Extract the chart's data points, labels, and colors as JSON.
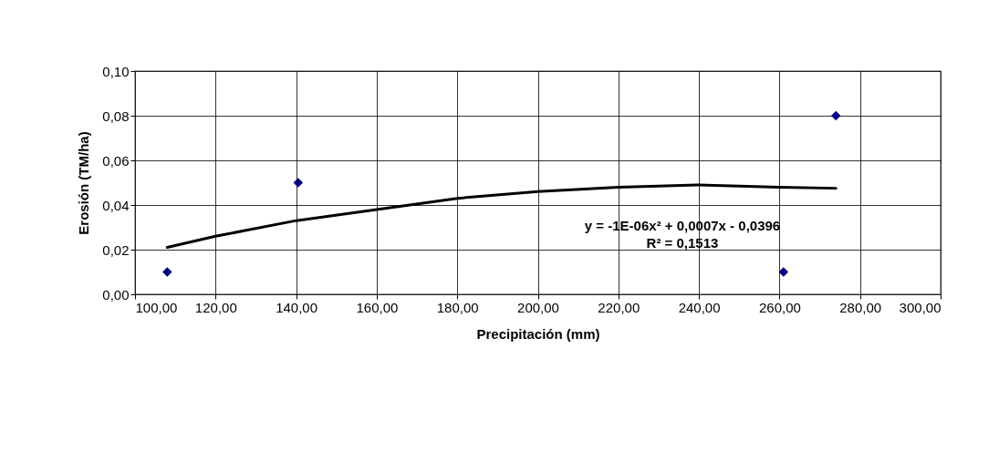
{
  "chart_data": {
    "type": "scatter",
    "xlabel": "Precipitación (mm)",
    "ylabel": "Erosión (TM/ha)",
    "xlim": [
      100,
      300
    ],
    "ylim": [
      0,
      0.1
    ],
    "xticks": [
      {
        "value": 100,
        "label": "100,00"
      },
      {
        "value": 120,
        "label": "120,00"
      },
      {
        "value": 140,
        "label": "140,00"
      },
      {
        "value": 160,
        "label": "160,00"
      },
      {
        "value": 180,
        "label": "180,00"
      },
      {
        "value": 200,
        "label": "200,00"
      },
      {
        "value": 220,
        "label": "220,00"
      },
      {
        "value": 240,
        "label": "240,00"
      },
      {
        "value": 260,
        "label": "260,00"
      },
      {
        "value": 280,
        "label": "280,00"
      },
      {
        "value": 300,
        "label": "300,00"
      }
    ],
    "yticks": [
      {
        "value": 0,
        "label": "0,00"
      },
      {
        "value": 0.02,
        "label": "0,02"
      },
      {
        "value": 0.04,
        "label": "0,04"
      },
      {
        "value": 0.06,
        "label": "0,06"
      },
      {
        "value": 0.08,
        "label": "0,08"
      },
      {
        "value": 0.1,
        "label": "0,10"
      }
    ],
    "grid": true,
    "marker": "diamond",
    "series": [
      {
        "color": "#000080",
        "x": [
          108,
          140.5,
          261,
          274
        ],
        "values": [
          0.01,
          0.05,
          0.01,
          0.08
        ]
      },
      {
        "type": "line",
        "color": "#000000",
        "marker": "none",
        "x": [
          108,
          120,
          140,
          160,
          180,
          200,
          220,
          240,
          260,
          274
        ],
        "values": [
          0.021,
          0.026,
          0.033,
          0.038,
          0.043,
          0.046,
          0.048,
          0.049,
          0.048,
          0.0475
        ]
      }
    ],
    "annotations": [
      "y = -1E-06x² + 0,0007x - 0,0396",
      "R² = 0,1513"
    ]
  }
}
